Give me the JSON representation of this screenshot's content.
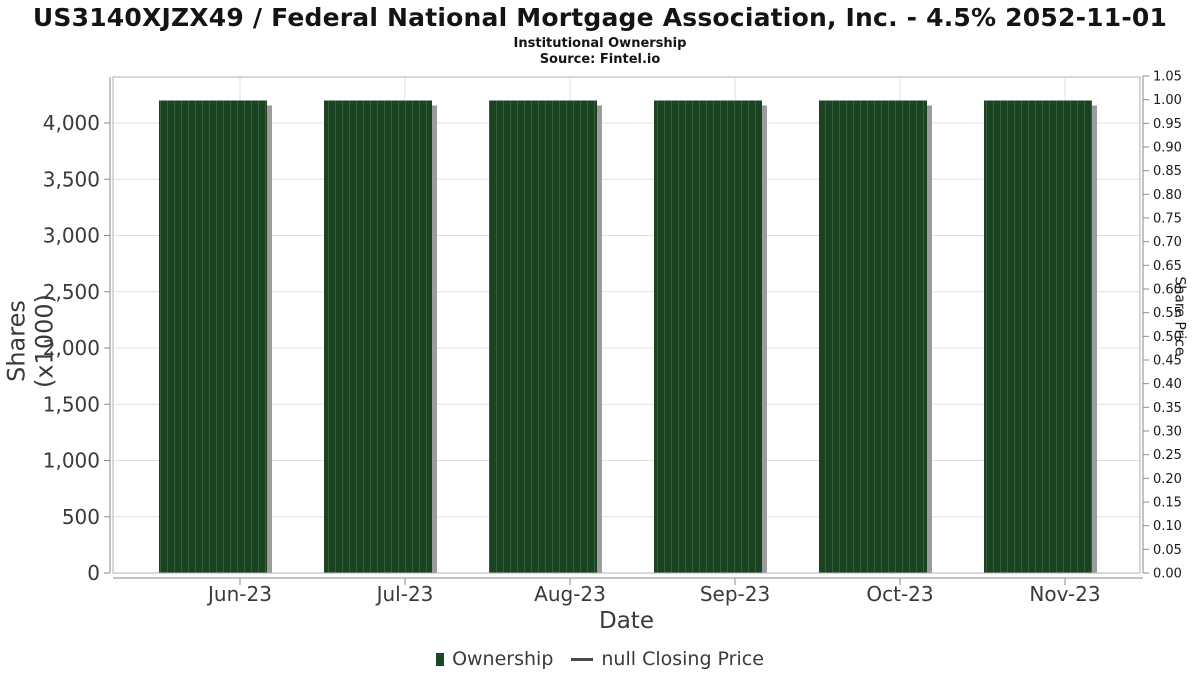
{
  "header": {
    "title": "US3140XJZX49 / Federal National Mortgage Association, Inc. - 4.5% 2052-11-01",
    "subtitle": "Institutional Ownership",
    "source": "Source: Fintel.io"
  },
  "chart_data": {
    "type": "bar",
    "title": "Institutional Ownership",
    "categories": [
      "Jun-23",
      "Jul-23",
      "Aug-23",
      "Sep-23",
      "Oct-23",
      "Nov-23"
    ],
    "series": [
      {
        "name": "Ownership",
        "type": "bar",
        "values": [
          4200,
          4200,
          4200,
          4200,
          4200,
          4200
        ]
      },
      {
        "name": "null Closing Price",
        "type": "line",
        "values": [
          null,
          null,
          null,
          null,
          null,
          null
        ]
      }
    ],
    "xlabel": "Date",
    "ylabel_left": "Shares (x1000)",
    "ylabel_right": "Share Price",
    "ylim_left": [
      0,
      4410
    ],
    "ylim_right": [
      0,
      1.05
    ],
    "grid": true,
    "legend_position": "bottom",
    "left_ticks": [
      {
        "v": 0,
        "label": "0"
      },
      {
        "v": 500,
        "label": "500"
      },
      {
        "v": 1000,
        "label": "1,000"
      },
      {
        "v": 1500,
        "label": "1,500"
      },
      {
        "v": 2000,
        "label": "2,000"
      },
      {
        "v": 2500,
        "label": "2,500"
      },
      {
        "v": 3000,
        "label": "3,000"
      },
      {
        "v": 3500,
        "label": "3,500"
      },
      {
        "v": 4000,
        "label": "4,000"
      }
    ],
    "right_ticks": [
      "0.00",
      "0.05",
      "0.10",
      "0.15",
      "0.20",
      "0.25",
      "0.30",
      "0.35",
      "0.40",
      "0.45",
      "0.50",
      "0.55",
      "0.60",
      "0.65",
      "0.70",
      "0.75",
      "0.80",
      "0.85",
      "0.90",
      "0.95",
      "1.00",
      "1.05"
    ]
  },
  "legend": {
    "ownership_label": "Ownership",
    "price_label": "null Closing Price"
  },
  "colors": {
    "bar": "#1a4322",
    "bar_hatch": "#35603b",
    "bar_shadow": "#9b9b9b",
    "legend_swatch": "#1a4724",
    "grid": "#e0e0e0",
    "border": "#b0b0b0",
    "axis": "#8a8a8a",
    "tick_text": "#3a3a3a",
    "right_tick_text": "#1a1a1a",
    "title_text": "#141414"
  }
}
